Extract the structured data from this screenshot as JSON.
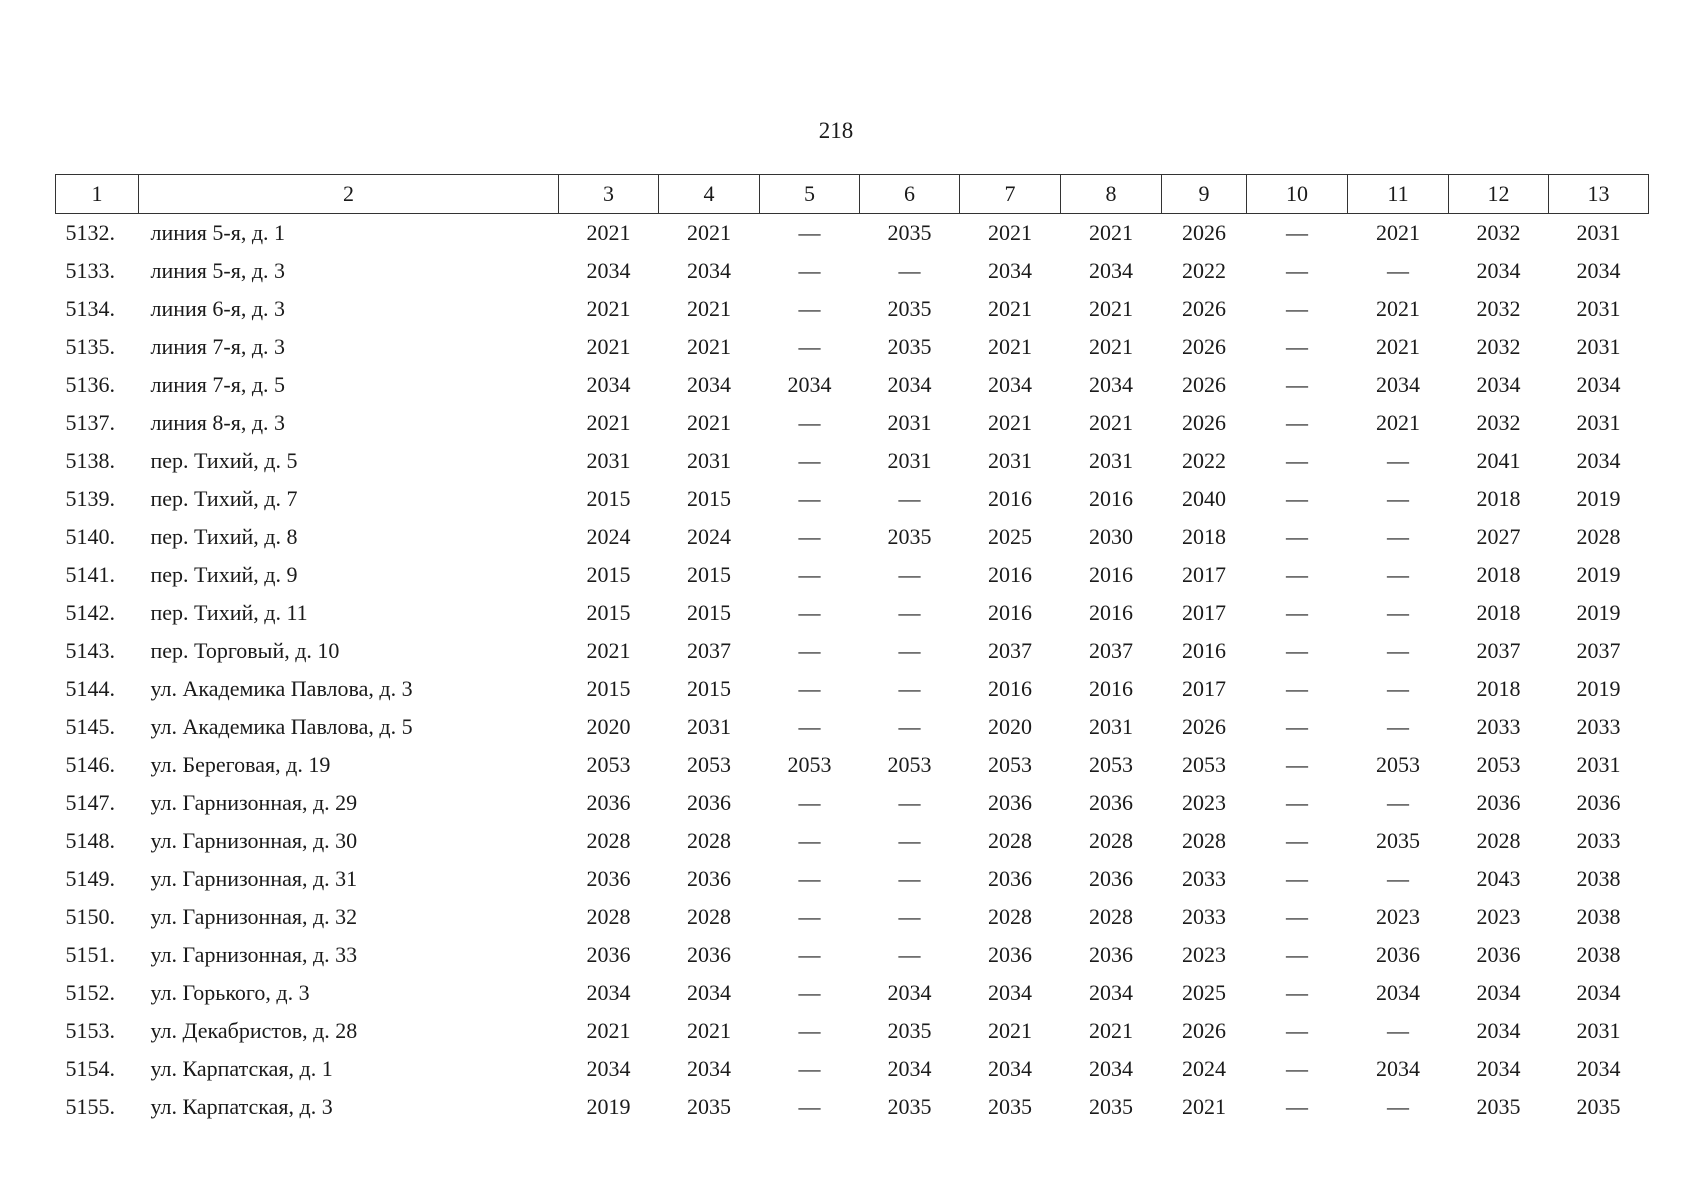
{
  "page_number": "218",
  "table": {
    "header": [
      "1",
      "2",
      "3",
      "4",
      "5",
      "6",
      "7",
      "8",
      "9",
      "10",
      "11",
      "12",
      "13"
    ],
    "rows": [
      [
        "5132.",
        "линия 5-я, д. 1",
        "2021",
        "2021",
        "—",
        "2035",
        "2021",
        "2021",
        "2026",
        "—",
        "2021",
        "2032",
        "2031"
      ],
      [
        "5133.",
        "линия 5-я, д. 3",
        "2034",
        "2034",
        "—",
        "—",
        "2034",
        "2034",
        "2022",
        "—",
        "—",
        "2034",
        "2034"
      ],
      [
        "5134.",
        "линия 6-я, д. 3",
        "2021",
        "2021",
        "—",
        "2035",
        "2021",
        "2021",
        "2026",
        "—",
        "2021",
        "2032",
        "2031"
      ],
      [
        "5135.",
        "линия 7-я, д. 3",
        "2021",
        "2021",
        "—",
        "2035",
        "2021",
        "2021",
        "2026",
        "—",
        "2021",
        "2032",
        "2031"
      ],
      [
        "5136.",
        "линия 7-я, д. 5",
        "2034",
        "2034",
        "2034",
        "2034",
        "2034",
        "2034",
        "2026",
        "—",
        "2034",
        "2034",
        "2034"
      ],
      [
        "5137.",
        "линия 8-я, д. 3",
        "2021",
        "2021",
        "—",
        "2031",
        "2021",
        "2021",
        "2026",
        "—",
        "2021",
        "2032",
        "2031"
      ],
      [
        "5138.",
        "пер. Тихий, д. 5",
        "2031",
        "2031",
        "—",
        "2031",
        "2031",
        "2031",
        "2022",
        "—",
        "—",
        "2041",
        "2034"
      ],
      [
        "5139.",
        "пер. Тихий, д. 7",
        "2015",
        "2015",
        "—",
        "—",
        "2016",
        "2016",
        "2040",
        "—",
        "—",
        "2018",
        "2019"
      ],
      [
        "5140.",
        "пер. Тихий, д. 8",
        "2024",
        "2024",
        "—",
        "2035",
        "2025",
        "2030",
        "2018",
        "—",
        "—",
        "2027",
        "2028"
      ],
      [
        "5141.",
        "пер. Тихий, д. 9",
        "2015",
        "2015",
        "—",
        "—",
        "2016",
        "2016",
        "2017",
        "—",
        "—",
        "2018",
        "2019"
      ],
      [
        "5142.",
        "пер. Тихий, д. 11",
        "2015",
        "2015",
        "—",
        "—",
        "2016",
        "2016",
        "2017",
        "—",
        "—",
        "2018",
        "2019"
      ],
      [
        "5143.",
        "пер. Торговый, д. 10",
        "2021",
        "2037",
        "—",
        "—",
        "2037",
        "2037",
        "2016",
        "—",
        "—",
        "2037",
        "2037"
      ],
      [
        "5144.",
        "ул. Академика Павлова, д. 3",
        "2015",
        "2015",
        "—",
        "—",
        "2016",
        "2016",
        "2017",
        "—",
        "—",
        "2018",
        "2019"
      ],
      [
        "5145.",
        "ул. Академика Павлова, д. 5",
        "2020",
        "2031",
        "—",
        "—",
        "2020",
        "2031",
        "2026",
        "—",
        "—",
        "2033",
        "2033"
      ],
      [
        "5146.",
        "ул. Береговая, д. 19",
        "2053",
        "2053",
        "2053",
        "2053",
        "2053",
        "2053",
        "2053",
        "—",
        "2053",
        "2053",
        "2031"
      ],
      [
        "5147.",
        "ул. Гарнизонная, д. 29",
        "2036",
        "2036",
        "—",
        "—",
        "2036",
        "2036",
        "2023",
        "—",
        "—",
        "2036",
        "2036"
      ],
      [
        "5148.",
        "ул. Гарнизонная, д. 30",
        "2028",
        "2028",
        "—",
        "—",
        "2028",
        "2028",
        "2028",
        "—",
        "2035",
        "2028",
        "2033"
      ],
      [
        "5149.",
        "ул. Гарнизонная, д. 31",
        "2036",
        "2036",
        "—",
        "—",
        "2036",
        "2036",
        "2033",
        "—",
        "—",
        "2043",
        "2038"
      ],
      [
        "5150.",
        "ул. Гарнизонная, д. 32",
        "2028",
        "2028",
        "—",
        "—",
        "2028",
        "2028",
        "2033",
        "—",
        "2023",
        "2023",
        "2038"
      ],
      [
        "5151.",
        "ул. Гарнизонная, д. 33",
        "2036",
        "2036",
        "—",
        "—",
        "2036",
        "2036",
        "2023",
        "—",
        "2036",
        "2036",
        "2038"
      ],
      [
        "5152.",
        "ул. Горького, д. 3",
        "2034",
        "2034",
        "—",
        "2034",
        "2034",
        "2034",
        "2025",
        "—",
        "2034",
        "2034",
        "2034"
      ],
      [
        "5153.",
        "ул. Декабристов, д. 28",
        "2021",
        "2021",
        "—",
        "2035",
        "2021",
        "2021",
        "2026",
        "—",
        "—",
        "2034",
        "2031"
      ],
      [
        "5154.",
        "ул. Карпатская, д. 1",
        "2034",
        "2034",
        "—",
        "2034",
        "2034",
        "2034",
        "2024",
        "—",
        "2034",
        "2034",
        "2034"
      ],
      [
        "5155.",
        "ул. Карпатская, д. 3",
        "2019",
        "2035",
        "—",
        "2035",
        "2035",
        "2035",
        "2021",
        "—",
        "—",
        "2035",
        "2035"
      ]
    ]
  }
}
